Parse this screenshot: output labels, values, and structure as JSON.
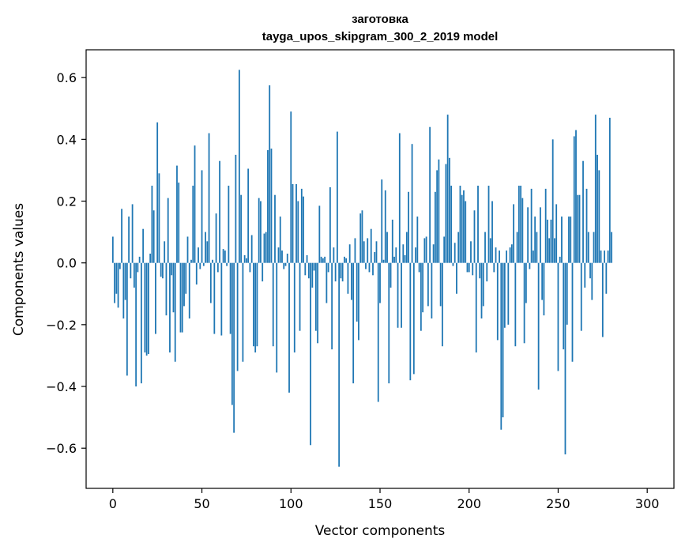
{
  "chart_data": {
    "type": "bar",
    "title_line1": "заготовка",
    "title_line2": "tayga_upos_skipgram_300_2_2019 model",
    "xlabel": "Vector components",
    "ylabel": "Components values",
    "xlim": [
      -15,
      315
    ],
    "ylim": [
      -0.73,
      0.69
    ],
    "xticks": [
      0,
      50,
      100,
      150,
      200,
      250,
      300
    ],
    "xtick_labels": [
      "0",
      "50",
      "100",
      "150",
      "200",
      "250",
      "300"
    ],
    "yticks": [
      -0.6,
      -0.4,
      -0.2,
      0.0,
      0.2,
      0.4,
      0.6
    ],
    "ytick_labels": [
      "−0.6",
      "−0.4",
      "−0.2",
      "0.0",
      "0.2",
      "0.4",
      "0.6"
    ],
    "color": "#1f77b4",
    "values": [
      0.085,
      -0.13,
      -0.1,
      -0.145,
      -0.02,
      0.175,
      -0.18,
      -0.12,
      -0.365,
      0.15,
      -0.05,
      0.19,
      -0.08,
      -0.4,
      -0.03,
      0.02,
      -0.39,
      0.11,
      -0.29,
      -0.3,
      -0.295,
      0.03,
      0.25,
      0.17,
      -0.23,
      0.455,
      0.29,
      -0.045,
      -0.05,
      0.07,
      -0.17,
      0.21,
      -0.29,
      -0.04,
      -0.16,
      -0.32,
      0.315,
      0.26,
      -0.225,
      -0.225,
      -0.14,
      -0.1,
      0.085,
      -0.18,
      0.01,
      0.25,
      0.38,
      -0.07,
      0.05,
      -0.02,
      0.3,
      -0.01,
      0.1,
      0.07,
      0.42,
      -0.13,
      0.01,
      -0.23,
      0.16,
      -0.03,
      0.33,
      -0.235,
      0.045,
      0.04,
      -0.01,
      0.25,
      -0.23,
      -0.46,
      -0.55,
      0.35,
      -0.35,
      0.625,
      0.22,
      -0.32,
      0.025,
      0.015,
      0.305,
      -0.03,
      0.09,
      -0.27,
      -0.29,
      -0.27,
      0.21,
      0.2,
      -0.06,
      0.095,
      0.1,
      0.365,
      0.575,
      0.37,
      -0.27,
      0.22,
      -0.355,
      0.05,
      0.15,
      0.04,
      -0.02,
      -0.01,
      0.03,
      -0.42,
      0.49,
      0.255,
      -0.29,
      0.255,
      0.2,
      -0.22,
      0.24,
      0.215,
      -0.04,
      0.025,
      -0.05,
      -0.59,
      -0.08,
      -0.025,
      -0.22,
      -0.26,
      0.185,
      0.02,
      0.015,
      0.02,
      -0.13,
      -0.03,
      0.245,
      -0.28,
      0.05,
      -0.06,
      0.425,
      -0.66,
      -0.05,
      -0.06,
      0.02,
      0.015,
      -0.1,
      0.06,
      -0.12,
      -0.39,
      0.08,
      -0.19,
      -0.25,
      0.16,
      0.17,
      0.07,
      -0.02,
      0.08,
      -0.03,
      0.11,
      -0.04,
      0.035,
      0.07,
      -0.45,
      -0.13,
      0.27,
      0.01,
      0.235,
      0.1,
      -0.39,
      -0.08,
      0.14,
      0.02,
      0.05,
      -0.21,
      0.42,
      -0.21,
      0.06,
      0.025,
      0.1,
      0.23,
      -0.38,
      0.385,
      -0.36,
      0.05,
      0.15,
      -0.03,
      -0.22,
      -0.16,
      0.08,
      0.085,
      -0.14,
      0.44,
      -0.18,
      0.06,
      0.23,
      0.3,
      0.335,
      -0.14,
      -0.27,
      0.085,
      0.32,
      0.48,
      0.34,
      0.25,
      -0.01,
      0.065,
      -0.1,
      0.1,
      0.25,
      0.22,
      0.235,
      0.2,
      -0.03,
      -0.03,
      0.07,
      -0.04,
      0.17,
      -0.29,
      0.25,
      -0.05,
      -0.18,
      -0.14,
      0.1,
      -0.06,
      0.25,
      0.08,
      0.2,
      -0.03,
      0.05,
      -0.25,
      0.04,
      -0.54,
      -0.5,
      -0.21,
      0.04,
      -0.2,
      0.05,
      0.06,
      0.19,
      -0.27,
      0.1,
      0.25,
      0.25,
      0.21,
      -0.26,
      -0.13,
      0.18,
      -0.02,
      0.24,
      0.04,
      0.15,
      0.1,
      -0.41,
      0.18,
      -0.12,
      -0.17,
      0.24,
      0.14,
      0.08,
      0.14,
      0.4,
      0.08,
      0.19,
      -0.35,
      0.02,
      0.15,
      -0.28,
      -0.62,
      -0.2,
      0.15,
      0.15,
      -0.32,
      0.41,
      0.43,
      0.22,
      0.22,
      -0.22,
      0.33,
      -0.08,
      0.24,
      0.1,
      -0.05,
      -0.12,
      0.1,
      0.48,
      0.35,
      0.3,
      0.04,
      -0.24,
      0.04,
      -0.1,
      0.04,
      0.47,
      0.1
    ]
  }
}
